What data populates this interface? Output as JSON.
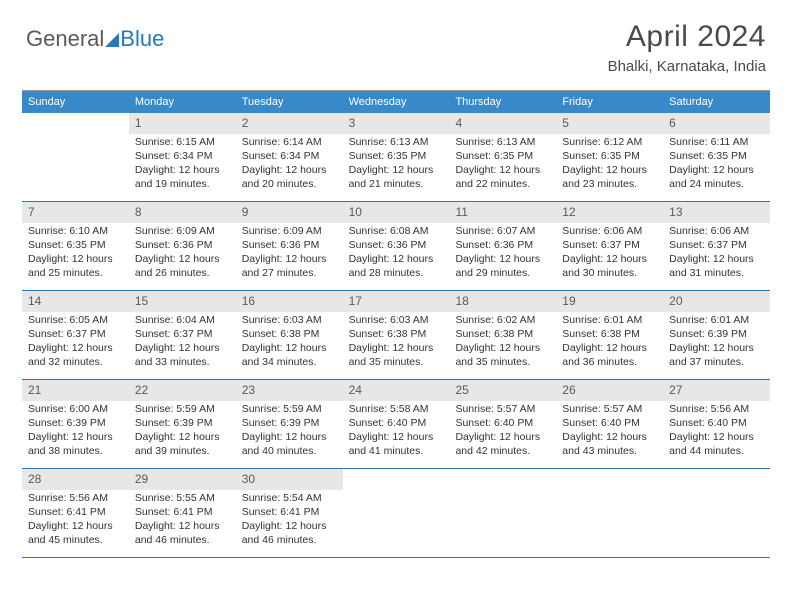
{
  "logo": {
    "text1": "General",
    "text2": "Blue"
  },
  "header": {
    "title": "April 2024",
    "location": "Bhalki, Karnataka, India"
  },
  "colors": {
    "accent": "#3889c7",
    "rule": "#2a77bb",
    "daynum_bg": "#e7e7e7",
    "text": "#333333"
  },
  "font": {
    "family": "Arial",
    "title_size": 30,
    "body_size": 10.5,
    "header_size": 11
  },
  "dayNames": [
    "Sunday",
    "Monday",
    "Tuesday",
    "Wednesday",
    "Thursday",
    "Friday",
    "Saturday"
  ],
  "weeks": [
    [
      null,
      {
        "n": "1",
        "sr": "Sunrise: 6:15 AM",
        "ss": "Sunset: 6:34 PM",
        "d1": "Daylight: 12 hours",
        "d2": "and 19 minutes."
      },
      {
        "n": "2",
        "sr": "Sunrise: 6:14 AM",
        "ss": "Sunset: 6:34 PM",
        "d1": "Daylight: 12 hours",
        "d2": "and 20 minutes."
      },
      {
        "n": "3",
        "sr": "Sunrise: 6:13 AM",
        "ss": "Sunset: 6:35 PM",
        "d1": "Daylight: 12 hours",
        "d2": "and 21 minutes."
      },
      {
        "n": "4",
        "sr": "Sunrise: 6:13 AM",
        "ss": "Sunset: 6:35 PM",
        "d1": "Daylight: 12 hours",
        "d2": "and 22 minutes."
      },
      {
        "n": "5",
        "sr": "Sunrise: 6:12 AM",
        "ss": "Sunset: 6:35 PM",
        "d1": "Daylight: 12 hours",
        "d2": "and 23 minutes."
      },
      {
        "n": "6",
        "sr": "Sunrise: 6:11 AM",
        "ss": "Sunset: 6:35 PM",
        "d1": "Daylight: 12 hours",
        "d2": "and 24 minutes."
      }
    ],
    [
      {
        "n": "7",
        "sr": "Sunrise: 6:10 AM",
        "ss": "Sunset: 6:35 PM",
        "d1": "Daylight: 12 hours",
        "d2": "and 25 minutes."
      },
      {
        "n": "8",
        "sr": "Sunrise: 6:09 AM",
        "ss": "Sunset: 6:36 PM",
        "d1": "Daylight: 12 hours",
        "d2": "and 26 minutes."
      },
      {
        "n": "9",
        "sr": "Sunrise: 6:09 AM",
        "ss": "Sunset: 6:36 PM",
        "d1": "Daylight: 12 hours",
        "d2": "and 27 minutes."
      },
      {
        "n": "10",
        "sr": "Sunrise: 6:08 AM",
        "ss": "Sunset: 6:36 PM",
        "d1": "Daylight: 12 hours",
        "d2": "and 28 minutes."
      },
      {
        "n": "11",
        "sr": "Sunrise: 6:07 AM",
        "ss": "Sunset: 6:36 PM",
        "d1": "Daylight: 12 hours",
        "d2": "and 29 minutes."
      },
      {
        "n": "12",
        "sr": "Sunrise: 6:06 AM",
        "ss": "Sunset: 6:37 PM",
        "d1": "Daylight: 12 hours",
        "d2": "and 30 minutes."
      },
      {
        "n": "13",
        "sr": "Sunrise: 6:06 AM",
        "ss": "Sunset: 6:37 PM",
        "d1": "Daylight: 12 hours",
        "d2": "and 31 minutes."
      }
    ],
    [
      {
        "n": "14",
        "sr": "Sunrise: 6:05 AM",
        "ss": "Sunset: 6:37 PM",
        "d1": "Daylight: 12 hours",
        "d2": "and 32 minutes."
      },
      {
        "n": "15",
        "sr": "Sunrise: 6:04 AM",
        "ss": "Sunset: 6:37 PM",
        "d1": "Daylight: 12 hours",
        "d2": "and 33 minutes."
      },
      {
        "n": "16",
        "sr": "Sunrise: 6:03 AM",
        "ss": "Sunset: 6:38 PM",
        "d1": "Daylight: 12 hours",
        "d2": "and 34 minutes."
      },
      {
        "n": "17",
        "sr": "Sunrise: 6:03 AM",
        "ss": "Sunset: 6:38 PM",
        "d1": "Daylight: 12 hours",
        "d2": "and 35 minutes."
      },
      {
        "n": "18",
        "sr": "Sunrise: 6:02 AM",
        "ss": "Sunset: 6:38 PM",
        "d1": "Daylight: 12 hours",
        "d2": "and 35 minutes."
      },
      {
        "n": "19",
        "sr": "Sunrise: 6:01 AM",
        "ss": "Sunset: 6:38 PM",
        "d1": "Daylight: 12 hours",
        "d2": "and 36 minutes."
      },
      {
        "n": "20",
        "sr": "Sunrise: 6:01 AM",
        "ss": "Sunset: 6:39 PM",
        "d1": "Daylight: 12 hours",
        "d2": "and 37 minutes."
      }
    ],
    [
      {
        "n": "21",
        "sr": "Sunrise: 6:00 AM",
        "ss": "Sunset: 6:39 PM",
        "d1": "Daylight: 12 hours",
        "d2": "and 38 minutes."
      },
      {
        "n": "22",
        "sr": "Sunrise: 5:59 AM",
        "ss": "Sunset: 6:39 PM",
        "d1": "Daylight: 12 hours",
        "d2": "and 39 minutes."
      },
      {
        "n": "23",
        "sr": "Sunrise: 5:59 AM",
        "ss": "Sunset: 6:39 PM",
        "d1": "Daylight: 12 hours",
        "d2": "and 40 minutes."
      },
      {
        "n": "24",
        "sr": "Sunrise: 5:58 AM",
        "ss": "Sunset: 6:40 PM",
        "d1": "Daylight: 12 hours",
        "d2": "and 41 minutes."
      },
      {
        "n": "25",
        "sr": "Sunrise: 5:57 AM",
        "ss": "Sunset: 6:40 PM",
        "d1": "Daylight: 12 hours",
        "d2": "and 42 minutes."
      },
      {
        "n": "26",
        "sr": "Sunrise: 5:57 AM",
        "ss": "Sunset: 6:40 PM",
        "d1": "Daylight: 12 hours",
        "d2": "and 43 minutes."
      },
      {
        "n": "27",
        "sr": "Sunrise: 5:56 AM",
        "ss": "Sunset: 6:40 PM",
        "d1": "Daylight: 12 hours",
        "d2": "and 44 minutes."
      }
    ],
    [
      {
        "n": "28",
        "sr": "Sunrise: 5:56 AM",
        "ss": "Sunset: 6:41 PM",
        "d1": "Daylight: 12 hours",
        "d2": "and 45 minutes."
      },
      {
        "n": "29",
        "sr": "Sunrise: 5:55 AM",
        "ss": "Sunset: 6:41 PM",
        "d1": "Daylight: 12 hours",
        "d2": "and 46 minutes."
      },
      {
        "n": "30",
        "sr": "Sunrise: 5:54 AM",
        "ss": "Sunset: 6:41 PM",
        "d1": "Daylight: 12 hours",
        "d2": "and 46 minutes."
      },
      null,
      null,
      null,
      null
    ]
  ]
}
